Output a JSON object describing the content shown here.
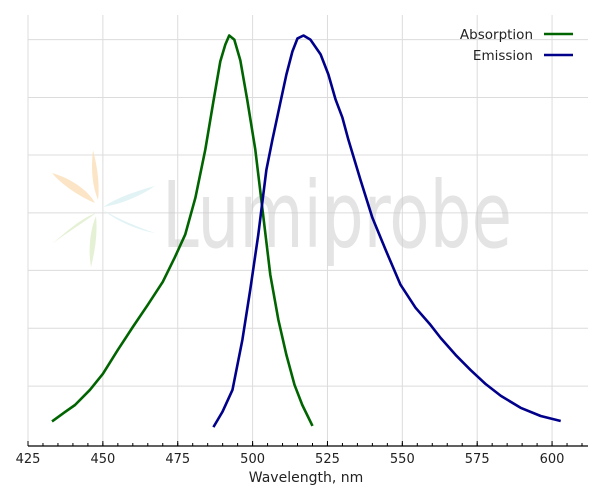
{
  "chart_data": {
    "type": "line",
    "title": "",
    "xlabel": "Wavelength, nm",
    "ylabel": "",
    "xlim": [
      425,
      612
    ],
    "ylim": [
      0,
      1.05
    ],
    "xticks": [
      425,
      450,
      475,
      500,
      525,
      550,
      575,
      600
    ],
    "xminor_step": 5,
    "ygrid": [
      0.146,
      0.287,
      0.428,
      0.568,
      0.709,
      0.849,
      0.99
    ],
    "yticklabels_shown": false,
    "grid": true,
    "legend_position": "top-right",
    "watermark": "Lumiprobe",
    "series": [
      {
        "name": "Absorption",
        "color": "#006400",
        "x": [
          433,
          437.4,
          440.7,
          445.7,
          450,
          455,
          460,
          465,
          470,
          474,
          477.5,
          480.9,
          484.2,
          487,
          489.2,
          490.9,
          492.2,
          493.9,
          495.9,
          498.2,
          500.9,
          503.3,
          505.9,
          508.6,
          511.3,
          514,
          516.6,
          520
        ],
        "y": [
          0.06,
          0.083,
          0.1,
          0.137,
          0.176,
          0.234,
          0.29,
          0.344,
          0.4,
          0.459,
          0.515,
          0.605,
          0.722,
          0.844,
          0.937,
          0.978,
          1.0,
          0.99,
          0.94,
          0.844,
          0.722,
          0.576,
          0.417,
          0.307,
          0.222,
          0.149,
          0.1,
          0.049
        ]
      },
      {
        "name": "Emission",
        "color": "#00008b",
        "x": [
          486.9,
          489.9,
          493.3,
          496.6,
          499.2,
          501.9,
          504.6,
          506.6,
          509.3,
          511.3,
          513.3,
          515,
          517,
          519.3,
          522.7,
          525.3,
          527.7,
          530,
          532,
          536,
          540,
          544.4,
          549.4,
          554.4,
          559.4,
          562.8,
          567.8,
          572.8,
          577.8,
          582.9,
          589.5,
          596.2,
          602.9
        ],
        "y": [
          0.046,
          0.083,
          0.137,
          0.259,
          0.38,
          0.515,
          0.673,
          0.746,
          0.837,
          0.905,
          0.961,
          0.993,
          1.0,
          0.99,
          0.954,
          0.905,
          0.844,
          0.8,
          0.746,
          0.649,
          0.556,
          0.478,
          0.393,
          0.337,
          0.295,
          0.263,
          0.222,
          0.185,
          0.151,
          0.122,
          0.093,
          0.073,
          0.061
        ]
      }
    ]
  }
}
